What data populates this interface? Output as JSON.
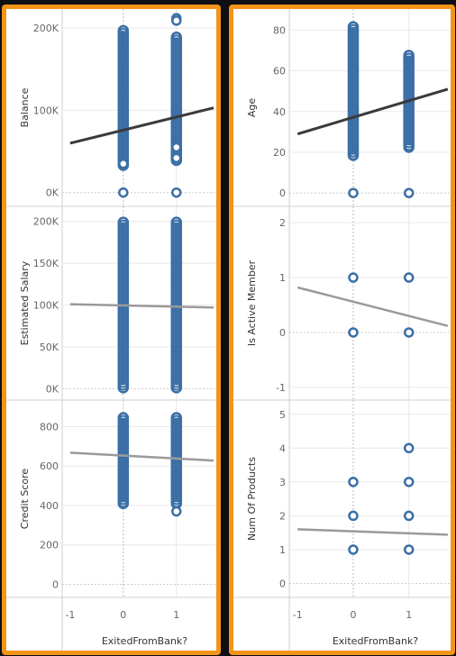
{
  "colors": {
    "frame": "#f39419",
    "marker": "#3b6fa6",
    "trend_dark": "#3a3a3a",
    "trend_light": "#9a9a9a",
    "grid": "#e8e8e8",
    "zero_line": "#cccccc"
  },
  "x_axis": {
    "label": "ExitedFromBank?",
    "ticks": [
      "-1",
      "0",
      "1"
    ]
  },
  "chart_data": [
    {
      "type": "scatter",
      "ylabel": "Balance",
      "ylim": [
        -8000,
        210000
      ],
      "yticks": [
        0,
        100000,
        200000
      ],
      "ytick_labels": [
        "0K",
        "100K",
        "200K"
      ],
      "x": [
        0,
        1
      ],
      "ranges": [
        [
          32000,
          198000
        ],
        [
          38000,
          190000
        ]
      ],
      "outliers": [
        [
          0,
          0
        ],
        [
          1,
          0
        ],
        [
          1,
          212000
        ],
        [
          1,
          209000
        ],
        [
          1,
          55000
        ],
        [
          1,
          42000
        ],
        [
          0,
          35000
        ]
      ],
      "trend": [
        [
          -1,
          60000
        ],
        [
          1.7,
          103000
        ]
      ],
      "trend_color": "trend_dark"
    },
    {
      "type": "scatter",
      "ylabel": "Estimated Salary",
      "ylim": [
        -5000,
        205000
      ],
      "yticks": [
        0,
        50000,
        100000,
        150000,
        200000
      ],
      "ytick_labels": [
        "0K",
        "50K",
        "100K",
        "150K",
        "200K"
      ],
      "x": [
        0,
        1
      ],
      "ranges": [
        [
          0,
          200000
        ],
        [
          0,
          200000
        ]
      ],
      "outliers": [],
      "trend": [
        [
          -1,
          101000
        ],
        [
          1.7,
          97000
        ]
      ],
      "trend_color": "trend_light"
    },
    {
      "type": "scatter",
      "ylabel": "Credit Score",
      "ylim": [
        -30,
        880
      ],
      "yticks": [
        0,
        200,
        400,
        600,
        800
      ],
      "ytick_labels": [
        "0",
        "200",
        "400",
        "600",
        "800"
      ],
      "x": [
        0,
        1
      ],
      "ranges": [
        [
          405,
          850
        ],
        [
          405,
          850
        ]
      ],
      "outliers": [
        [
          1,
          370
        ]
      ],
      "trend": [
        [
          -1,
          668
        ],
        [
          1.7,
          628
        ]
      ],
      "trend_color": "trend_light"
    },
    {
      "type": "scatter",
      "ylabel": "Age",
      "ylim": [
        -3,
        85
      ],
      "yticks": [
        0,
        20,
        40,
        60,
        80
      ],
      "ytick_labels": [
        "0",
        "20",
        "40",
        "60",
        "80"
      ],
      "x": [
        0,
        1
      ],
      "ranges": [
        [
          18,
          82
        ],
        [
          22,
          68
        ]
      ],
      "outliers": [
        [
          0,
          0
        ],
        [
          1,
          0
        ]
      ],
      "trend": [
        [
          -1,
          29
        ],
        [
          1.7,
          51
        ]
      ],
      "trend_color": "trend_dark"
    },
    {
      "type": "scatter",
      "ylabel": "Is Active Member",
      "ylim": [
        -1.1,
        2.1
      ],
      "yticks": [
        -1,
        0,
        1,
        2
      ],
      "ytick_labels": [
        "-1",
        "0",
        "1",
        "2"
      ],
      "x": [
        0,
        1
      ],
      "ranges": [],
      "outliers": [
        [
          0,
          0
        ],
        [
          0,
          1
        ],
        [
          1,
          0
        ],
        [
          1,
          1
        ]
      ],
      "trend": [
        [
          -1,
          0.82
        ],
        [
          1.7,
          0.12
        ]
      ],
      "trend_color": "trend_light"
    },
    {
      "type": "scatter",
      "ylabel": "Num Of Products",
      "ylim": [
        -0.2,
        5.1
      ],
      "yticks": [
        0,
        1,
        2,
        3,
        4,
        5
      ],
      "ytick_labels": [
        "0",
        "1",
        "2",
        "3",
        "4",
        "5"
      ],
      "x": [
        0,
        1
      ],
      "ranges": [],
      "outliers": [
        [
          0,
          1
        ],
        [
          0,
          2
        ],
        [
          0,
          3
        ],
        [
          1,
          1
        ],
        [
          1,
          2
        ],
        [
          1,
          3
        ],
        [
          1,
          4
        ]
      ],
      "trend": [
        [
          -1,
          1.6
        ],
        [
          1.7,
          1.44
        ]
      ],
      "trend_color": "trend_light"
    }
  ]
}
